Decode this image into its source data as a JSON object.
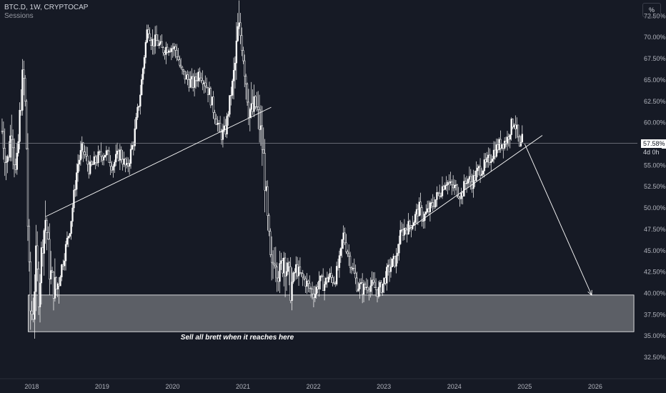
{
  "header": {
    "symbol_line": "BTC.D, 1W, CRYPTOCAP",
    "indicator": "Sessions"
  },
  "scale_button": "%",
  "price_tag": {
    "value": "57.58%",
    "countdown": "4d 0h"
  },
  "annotation": "Sell all brett when it reaches here",
  "colors": {
    "background": "#161a25",
    "candles": "#ffffff",
    "zone_fill": "#ffffff",
    "text": "#d1d4dc"
  },
  "chart_data": {
    "type": "candlestick",
    "title": "BTC.D",
    "timeframe": "1W",
    "source": "CRYPTOCAP",
    "x_ticks": [
      "2018",
      "2019",
      "2020",
      "2021",
      "2022",
      "2023",
      "2024",
      "2025",
      "2026"
    ],
    "y_ticks": [
      "72.50%",
      "70.00%",
      "67.50%",
      "65.00%",
      "62.50%",
      "60.00%",
      "57.50%",
      "55.00%",
      "52.50%",
      "50.00%",
      "47.50%",
      "45.00%",
      "42.50%",
      "40.00%",
      "37.50%",
      "35.00%",
      "32.50%"
    ],
    "ylim": [
      31.5,
      73.7
    ],
    "xlim": [
      2017.55,
      2026.6
    ],
    "last_price": 57.58,
    "price_path": [
      [
        2017.58,
        59
      ],
      [
        2017.65,
        55
      ],
      [
        2017.72,
        60
      ],
      [
        2017.78,
        53
      ],
      [
        2017.84,
        62
      ],
      [
        2017.88,
        66
      ],
      [
        2017.92,
        60
      ],
      [
        2017.95,
        46
      ],
      [
        2017.98,
        38
      ],
      [
        2018.02,
        37.5
      ],
      [
        2018.06,
        44
      ],
      [
        2018.1,
        40
      ],
      [
        2018.15,
        46
      ],
      [
        2018.2,
        49
      ],
      [
        2018.25,
        43
      ],
      [
        2018.3,
        41
      ],
      [
        2018.35,
        40.5
      ],
      [
        2018.45,
        44
      ],
      [
        2018.55,
        48
      ],
      [
        2018.65,
        55
      ],
      [
        2018.72,
        57
      ],
      [
        2018.82,
        54.5
      ],
      [
        2018.95,
        56
      ],
      [
        2019.05,
        56.5
      ],
      [
        2019.15,
        55
      ],
      [
        2019.25,
        56.5
      ],
      [
        2019.35,
        54.5
      ],
      [
        2019.45,
        58
      ],
      [
        2019.55,
        64
      ],
      [
        2019.6,
        68
      ],
      [
        2019.65,
        71.5
      ],
      [
        2019.7,
        69.5
      ],
      [
        2019.78,
        69.5
      ],
      [
        2019.85,
        68.5
      ],
      [
        2019.95,
        69
      ],
      [
        2020.05,
        68.5
      ],
      [
        2020.12,
        66
      ],
      [
        2020.22,
        65
      ],
      [
        2020.3,
        64.5
      ],
      [
        2020.38,
        66
      ],
      [
        2020.45,
        65
      ],
      [
        2020.52,
        63.5
      ],
      [
        2020.6,
        61
      ],
      [
        2020.68,
        58.5
      ],
      [
        2020.75,
        59
      ],
      [
        2020.82,
        63
      ],
      [
        2020.88,
        66
      ],
      [
        2020.93,
        71
      ],
      [
        2020.98,
        70
      ],
      [
        2021.03,
        66
      ],
      [
        2021.08,
        62
      ],
      [
        2021.12,
        61
      ],
      [
        2021.18,
        62
      ],
      [
        2021.25,
        59
      ],
      [
        2021.3,
        55
      ],
      [
        2021.35,
        48
      ],
      [
        2021.4,
        42
      ],
      [
        2021.45,
        45
      ],
      [
        2021.52,
        42
      ],
      [
        2021.58,
        44.5
      ],
      [
        2021.62,
        43
      ],
      [
        2021.68,
        40.5
      ],
      [
        2021.75,
        43
      ],
      [
        2021.82,
        42
      ],
      [
        2021.88,
        41.5
      ],
      [
        2021.95,
        40.5
      ],
      [
        2022.02,
        40
      ],
      [
        2022.08,
        41.5
      ],
      [
        2022.15,
        41
      ],
      [
        2022.22,
        42
      ],
      [
        2022.3,
        41.5
      ],
      [
        2022.38,
        44
      ],
      [
        2022.42,
        47
      ],
      [
        2022.48,
        45
      ],
      [
        2022.55,
        43
      ],
      [
        2022.62,
        41
      ],
      [
        2022.7,
        40.5
      ],
      [
        2022.78,
        41
      ],
      [
        2022.85,
        40.8
      ],
      [
        2022.92,
        40.2
      ],
      [
        2022.98,
        41
      ],
      [
        2023.05,
        42.5
      ],
      [
        2023.12,
        43.5
      ],
      [
        2023.18,
        44
      ],
      [
        2023.22,
        46.5
      ],
      [
        2023.28,
        47.5
      ],
      [
        2023.35,
        47.8
      ],
      [
        2023.42,
        48.5
      ],
      [
        2023.5,
        50
      ],
      [
        2023.55,
        48.8
      ],
      [
        2023.62,
        49.5
      ],
      [
        2023.7,
        50.5
      ],
      [
        2023.8,
        52
      ],
      [
        2023.88,
        53.3
      ],
      [
        2023.95,
        52.5
      ],
      [
        2024.02,
        52.3
      ],
      [
        2024.1,
        51.5
      ],
      [
        2024.18,
        53.5
      ],
      [
        2024.25,
        53
      ],
      [
        2024.35,
        54.5
      ],
      [
        2024.45,
        55
      ],
      [
        2024.55,
        56.5
      ],
      [
        2024.65,
        57.5
      ],
      [
        2024.75,
        58
      ],
      [
        2024.8,
        59.5
      ],
      [
        2024.85,
        60.3
      ],
      [
        2024.9,
        58.5
      ],
      [
        2024.93,
        56.5
      ],
      [
        2024.96,
        58
      ],
      [
        2024.98,
        57.6
      ]
    ],
    "trendlines": [
      {
        "start": [
          2018.2,
          49
        ],
        "end": [
          2021.4,
          61.8
        ]
      },
      {
        "start": [
          2023.35,
          47.5
        ],
        "end": [
          2025.25,
          58.5
        ]
      }
    ],
    "projection_arrow": {
      "start": [
        2025.0,
        57.5
      ],
      "end": [
        2025.95,
        39.8
      ]
    },
    "support_zone": {
      "x_start": 2017.95,
      "x_end": 2026.55,
      "y_low": 35.5,
      "y_high": 39.8
    }
  }
}
